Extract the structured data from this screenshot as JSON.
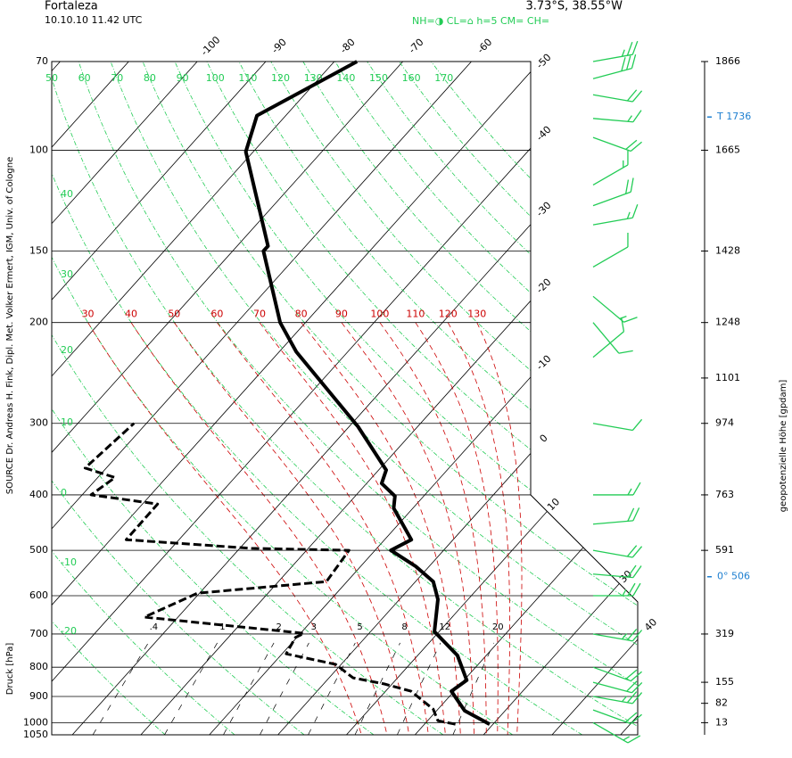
{
  "header": {
    "title": "Fortaleza",
    "date": "10.10.10  11.42 UTC",
    "location": "3.73°S, 38.55°W",
    "clouds": "NH=◑   CL=⌂   h=5     CM=     CH="
  },
  "source": "SOURCE Dr. Andreas H. Fink, Dipl. Met. Volker Ermert, IGM, Univ. of Cologne",
  "chart_data": {
    "type": "skewt",
    "ylabel": "Druck [hPa]",
    "y2label": "geopotenzielle Höhe [gpdam]",
    "ylim": [
      1050,
      70
    ],
    "log": true,
    "yticks": [
      70,
      100,
      150,
      200,
      300,
      400,
      500,
      600,
      700,
      800,
      900,
      1000,
      1050
    ],
    "xlim": [
      -33,
      52.5
    ],
    "xticks": [
      -100,
      -90,
      -80,
      -70,
      -60,
      -50,
      -40,
      -30,
      -20,
      -10,
      0,
      10,
      30,
      40
    ],
    "grid": true,
    "grid_color": "#000000",
    "dry_adiabats": {
      "color": "#22cc55",
      "values": [
        -20,
        -10,
        0,
        10,
        20,
        30,
        40,
        50,
        60,
        70,
        80,
        90,
        100,
        110,
        120,
        130,
        140,
        150,
        160,
        170
      ]
    },
    "moist_adiabats": {
      "color": "#cc0000",
      "values": [
        30,
        40,
        50,
        60,
        70,
        80,
        90,
        100,
        110,
        120,
        130
      ]
    },
    "mixing_ratio": {
      "color": "#000000",
      "values": [
        {
          "value": 0.4,
          "label": ".4"
        },
        1,
        2,
        3,
        5,
        8,
        12,
        20
      ]
    },
    "series": [
      {
        "color": "#000000",
        "style": "solid",
        "pressure": [
          1006,
          953,
          881,
          843,
          763,
          693,
          609,
          567,
          533,
          500,
          479,
          422,
          402,
          382,
          362,
          304,
          225,
          200,
          150,
          147,
          100.6,
          87,
          70
        ],
        "values": [
          29.5,
          24.1,
          19.6,
          20.4,
          15.8,
          9.3,
          5.6,
          2.6,
          -2.0,
          -7.7,
          -6.1,
          -12.8,
          -14.2,
          -17.8,
          -18.9,
          -28.7,
          -47.5,
          -53.7,
          -65.5,
          -65.5,
          -81.1,
          -84.2,
          -76.7
        ]
      },
      {
        "color": "#000000",
        "style": "dashed",
        "pressure": [
          1006,
          992,
          947,
          881,
          856,
          835,
          791,
          758,
          710,
          698,
          654,
          594,
          567,
          500,
          496,
          479,
          415,
          400,
          373,
          359,
          300
        ],
        "values": [
          24.5,
          21.5,
          19.3,
          13.7,
          8.9,
          3.5,
          -0.8,
          -9.4,
          -10.2,
          -9.5,
          -34.9,
          -30.3,
          -13.0,
          -13.8,
          -28.3,
          -47.7,
          -47.8,
          -58.7,
          -57.5,
          -63.1,
          -61.8
        ]
      }
    ],
    "winds": {
      "color": "#22cc55",
      "pressure": [
        70,
        75,
        80,
        88,
        95,
        115,
        125,
        135,
        160,
        180,
        200,
        230,
        300,
        400,
        450,
        500,
        550,
        600,
        700,
        800,
        850,
        900,
        950,
        1000
      ],
      "direction": [
        80,
        75,
        100,
        95,
        110,
        60,
        70,
        80,
        60,
        130,
        140,
        50,
        100,
        90,
        85,
        100,
        95,
        90,
        100,
        110,
        105,
        100,
        110,
        120
      ],
      "speed": [
        25,
        30,
        20,
        15,
        20,
        15,
        20,
        15,
        10,
        15,
        10,
        10,
        10,
        15,
        20,
        20,
        20,
        25,
        25,
        20,
        20,
        25,
        20,
        15
      ]
    },
    "heights": {
      "pressure": [
        70,
        100,
        150,
        200,
        250,
        300,
        400,
        500,
        700,
        850,
        925,
        1000
      ],
      "values": [
        1866,
        1665,
        1428,
        1248,
        1101,
        974,
        763,
        591,
        319,
        155,
        82,
        13
      ]
    },
    "annotations": [
      {
        "pressure": 87.5,
        "text": "T  1736",
        "color": "#1e7fd0"
      },
      {
        "pressure": 556,
        "text": "0°   506",
        "color": "#1e7fd0"
      }
    ]
  }
}
